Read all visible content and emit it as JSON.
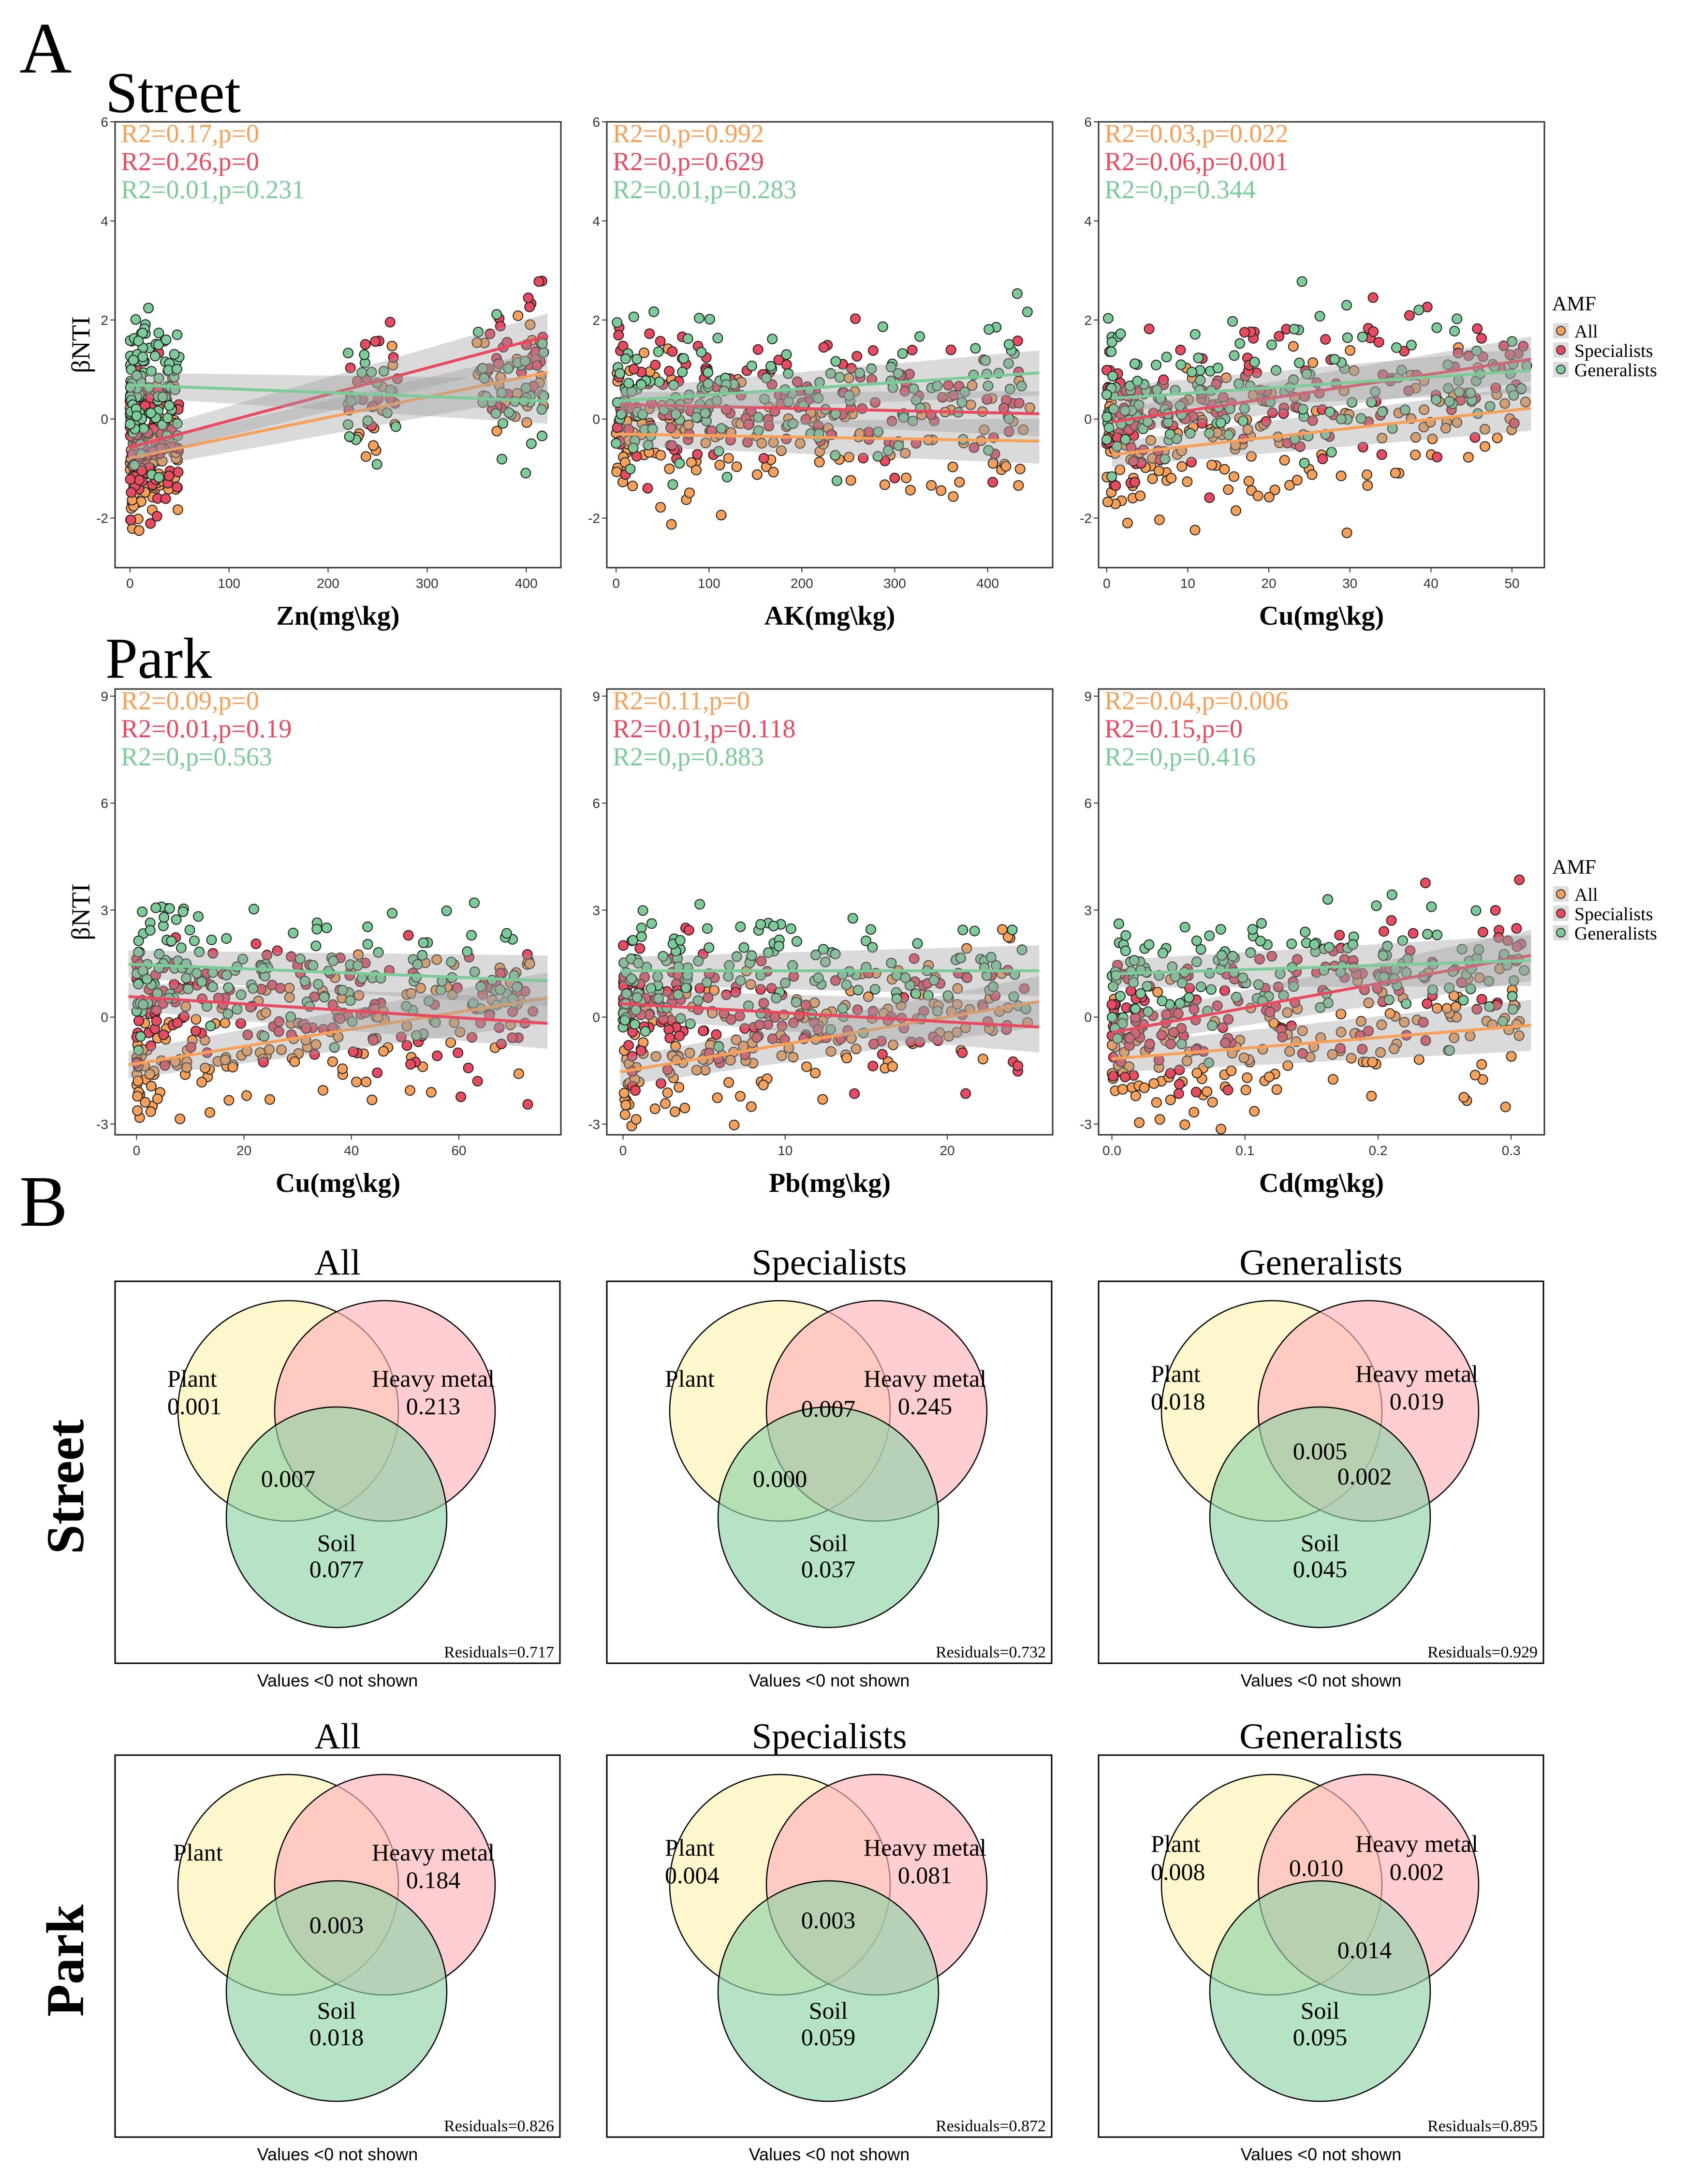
{
  "panel_labels": {
    "a": "A",
    "b": "B"
  },
  "section_a": {
    "groups": [
      {
        "title": "Street",
        "ylabel": "βNTI",
        "yticks": [
          "-2",
          "0",
          "2",
          "4",
          "6"
        ],
        "ylim": [
          -3,
          6
        ]
      },
      {
        "title": "Park",
        "ylabel": "βNTI",
        "yticks": [
          "-3",
          "0",
          "3",
          "6",
          "9"
        ],
        "ylim": [
          -3.3,
          9.2
        ]
      }
    ],
    "legend": {
      "title": "AMF",
      "items": [
        {
          "label": "All",
          "color": "#F6A05A"
        },
        {
          "label": "Specialists",
          "color": "#E84A5F"
        },
        {
          "label": "Generalists",
          "color": "#7CCB98"
        }
      ]
    }
  },
  "chart_data": [
    {
      "type": "scatter",
      "group": "Street",
      "xlabel": "Zn(mg\\kg)",
      "ylabel": "βNTI",
      "xlim": [
        -15,
        435
      ],
      "ylim": [
        -3,
        6
      ],
      "xticks": [
        0,
        100,
        200,
        300,
        400
      ],
      "stats": [
        "R2=0.17,p=0",
        "R2=0.26,p=0",
        "R2=0.01,p=0.231"
      ],
      "fits": {
        "All": [
          -0.85,
          1.0
        ],
        "Specialists": [
          -0.65,
          1.75
        ],
        "Generalists": [
          0.7,
          0.35
        ]
      },
      "cluster": {
        "x": [
          0,
          50
        ],
        "x2": [
          350,
          420
        ]
      }
    },
    {
      "type": "scatter",
      "group": "Street",
      "xlabel": "AK(mg\\kg)",
      "ylabel": "βNTI",
      "xlim": [
        -10,
        470
      ],
      "ylim": [
        -3,
        6
      ],
      "xticks": [
        0,
        100,
        200,
        300,
        400
      ],
      "stats": [
        "R2=0,p=0.992",
        "R2=0,p=0.629",
        "R2=0.01,p=0.283"
      ],
      "fits": {
        "All": [
          -0.3,
          -0.45
        ],
        "Specialists": [
          0.3,
          0.1
        ],
        "Generalists": [
          0.35,
          0.95
        ]
      },
      "cluster": {
        "x": [
          0,
          450
        ]
      }
    },
    {
      "type": "scatter",
      "group": "Street",
      "xlabel": "Cu(mg\\kg)",
      "ylabel": "βNTI",
      "xlim": [
        -1,
        54
      ],
      "ylim": [
        -3,
        6
      ],
      "xticks": [
        0,
        10,
        20,
        30,
        40,
        50
      ],
      "stats": [
        "R2=0.03,p=0.022",
        "R2=0.06,p=0.001",
        "R2=0,p=0.344"
      ],
      "fits": {
        "All": [
          -0.75,
          0.25
        ],
        "Specialists": [
          -0.1,
          1.25
        ],
        "Generalists": [
          0.4,
          1.0
        ]
      },
      "cluster": {
        "x": [
          0,
          52
        ]
      }
    },
    {
      "type": "scatter",
      "group": "Park",
      "xlabel": "Cu(mg\\kg)",
      "ylabel": "βNTI",
      "xlim": [
        -4,
        79
      ],
      "ylim": [
        -3.3,
        9.2
      ],
      "xticks": [
        0,
        20,
        40,
        60
      ],
      "stats": [
        "R2=0.09,p=0",
        "R2=0.01,p=0.19",
        "R2=0,p=0.563"
      ],
      "fits": {
        "All": [
          -1.4,
          0.6
        ],
        "Specialists": [
          0.6,
          -0.2
        ],
        "Generalists": [
          1.5,
          1.0
        ]
      },
      "cluster": {
        "x": [
          0,
          75
        ]
      }
    },
    {
      "type": "scatter",
      "group": "Park",
      "xlabel": "Pb(mg\\kg)",
      "ylabel": "βNTI",
      "xlim": [
        -1,
        26.5
      ],
      "ylim": [
        -3.3,
        9.2
      ],
      "xticks": [
        0,
        10,
        20
      ],
      "stats": [
        "R2=0.11,p=0",
        "R2=0.01,p=0.118",
        "R2=0,p=0.883"
      ],
      "fits": {
        "All": [
          -1.6,
          0.5
        ],
        "Specialists": [
          0.4,
          -0.3
        ],
        "Generalists": [
          1.3,
          1.3
        ]
      },
      "cluster": {
        "x": [
          0,
          25
        ]
      }
    },
    {
      "type": "scatter",
      "group": "Park",
      "xlabel": "Cd(mg\\kg)",
      "ylabel": "βNTI",
      "xlim": [
        -0.01,
        0.325
      ],
      "ylim": [
        -3.3,
        9.2
      ],
      "xticks": [
        0.0,
        0.1,
        0.2,
        0.3
      ],
      "stats": [
        "R2=0.04,p=0.006",
        "R2=0.15,p=0",
        "R2=0,p=0.416"
      ],
      "fits": {
        "All": [
          -1.2,
          -0.2
        ],
        "Specialists": [
          -0.5,
          1.8
        ],
        "Generalists": [
          1.2,
          1.6
        ]
      },
      "cluster": {
        "x": [
          0,
          0.31
        ]
      }
    }
  ],
  "section_b": {
    "row_labels": [
      "Street",
      "Park"
    ],
    "circle_labels": {
      "plant": "Plant",
      "heavy": "Heavy metal",
      "soil": "Soil"
    },
    "footnote": "Values <0 not shown",
    "panels": [
      {
        "title": "All",
        "plant": "0.001",
        "heavy": "0.213",
        "soil": "0.077",
        "ph": "",
        "ps": "0.007",
        "hs": "",
        "phs": "",
        "residuals": "Residuals=0.717"
      },
      {
        "title": "Specialists",
        "plant": "",
        "heavy": "0.245",
        "soil": "0.037",
        "ph": "0.007",
        "ps": "0.000",
        "hs": "",
        "phs": "",
        "residuals": "Residuals=0.732"
      },
      {
        "title": "Generalists",
        "plant": "0.018",
        "heavy": "0.019",
        "soil": "0.045",
        "ph": "",
        "ps": "",
        "hs": "0.002",
        "phs": "0.005",
        "residuals": "Residuals=0.929"
      },
      {
        "title": "All",
        "plant": "",
        "heavy": "0.184",
        "soil": "0.018",
        "ph": "",
        "ps": "",
        "hs": "",
        "phs": "0.003",
        "residuals": "Residuals=0.826"
      },
      {
        "title": "Specialists",
        "plant": "0.004",
        "heavy": "0.081",
        "soil": "0.059",
        "ph": "",
        "ps": "",
        "hs": "",
        "phs": "0.003",
        "residuals": "Residuals=0.872"
      },
      {
        "title": "Generalists",
        "plant": "0.008",
        "heavy": "0.002",
        "soil": "0.095",
        "ph": "0.010",
        "ps": "",
        "hs": "0.014",
        "phs": "",
        "residuals": "Residuals=0.895"
      }
    ],
    "colors": {
      "plant": "#FFF3B0",
      "heavy": "#FFB3BB",
      "soil": "#8FD3A8"
    }
  }
}
